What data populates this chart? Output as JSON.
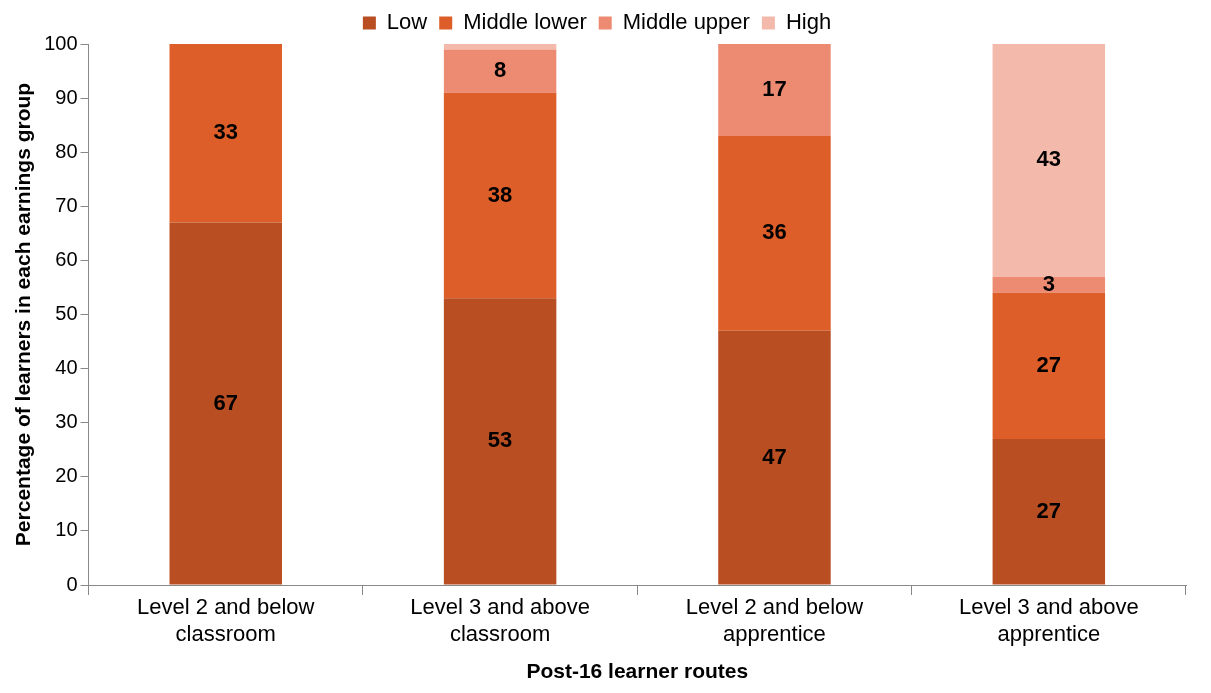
{
  "chart_data": {
    "type": "bar",
    "stacked": true,
    "xlabel": "Post-16 learner routes",
    "ylabel": "Percentage of learners in each earnings group",
    "categories": [
      "Level 2 and below classroom",
      "Level 3 and above classroom",
      "Level 2 and below apprentice",
      "Level 3 and above apprentice"
    ],
    "series": [
      {
        "name": "Low",
        "color": "#b94e22",
        "values": [
          67,
          53,
          47,
          27
        ],
        "value_labels": [
          "67",
          "53",
          "47",
          "27"
        ]
      },
      {
        "name": "Middle lower",
        "color": "#dd5e28",
        "values": [
          33,
          38,
          36,
          27
        ],
        "value_labels": [
          "33",
          "38",
          "36",
          "27"
        ]
      },
      {
        "name": "Middle upper",
        "color": "#ed8a72",
        "values": [
          null,
          8,
          17,
          3
        ],
        "value_labels": [
          null,
          "8",
          "17",
          "3"
        ]
      },
      {
        "name": "High",
        "color": "#f3b9ab",
        "values": [
          null,
          1,
          null,
          43
        ],
        "value_labels": [
          null,
          null,
          null,
          "43"
        ]
      }
    ],
    "ylim": [
      0,
      100
    ],
    "yticks": [
      0,
      10,
      20,
      30,
      40,
      50,
      60,
      70,
      80,
      90,
      100
    ],
    "grid": false,
    "legend": "top"
  }
}
